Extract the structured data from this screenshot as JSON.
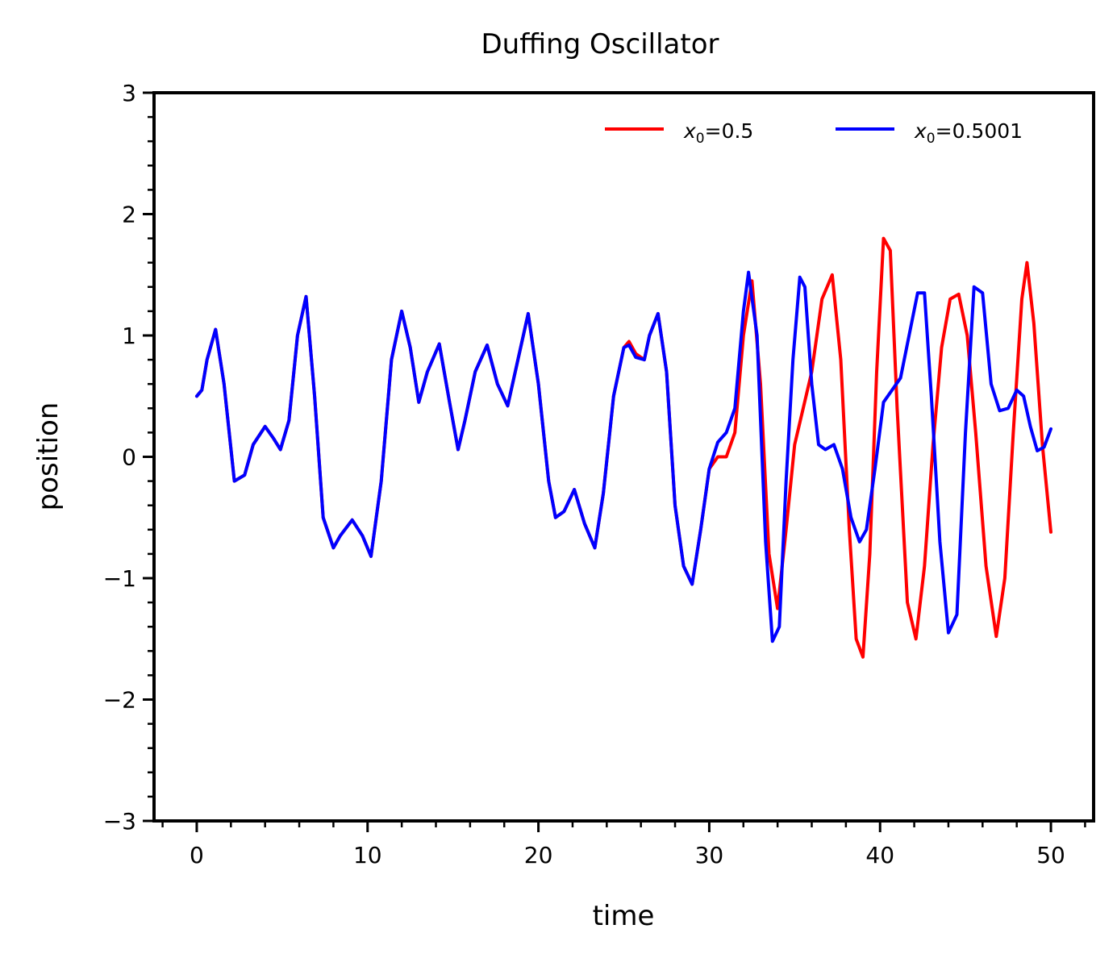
{
  "chart_data": {
    "type": "line",
    "title": "Duffing Oscillator",
    "xlabel": "time",
    "ylabel": "position",
    "xlim": [
      -2.5,
      52.5
    ],
    "ylim": [
      -3,
      3
    ],
    "x_ticks": [
      0,
      10,
      20,
      30,
      40,
      50
    ],
    "x_tick_labels": [
      "0",
      "10",
      "20",
      "30",
      "40",
      "50"
    ],
    "y_ticks": [
      -3,
      -2,
      -1,
      0,
      1,
      2,
      3
    ],
    "y_tick_labels": [
      "−3",
      "−2",
      "−1",
      "0",
      "1",
      "2",
      "3"
    ],
    "grid": false,
    "legend_position": "top-right",
    "series": [
      {
        "name": "x₀=0.5",
        "legend_var": "x",
        "legend_sub": "0",
        "legend_rest": "=0.5",
        "color": "#ff0000",
        "x": [
          0,
          0.3,
          0.6,
          1.1,
          1.6,
          2.2,
          2.8,
          3.3,
          4.0,
          4.5,
          4.9,
          5.4,
          5.9,
          6.4,
          6.9,
          7.4,
          8.0,
          8.4,
          9.1,
          9.7,
          10.2,
          10.8,
          11.4,
          12.0,
          12.5,
          13.0,
          13.5,
          14.2,
          14.8,
          15.3,
          15.7,
          16.3,
          17.0,
          17.6,
          18.2,
          18.8,
          19.4,
          20.0,
          20.6,
          21.0,
          21.5,
          22.1,
          22.7,
          23.3,
          23.8,
          24.4,
          25.0,
          25.3,
          25.7,
          26.2,
          26.5,
          27.0,
          27.5,
          28.0,
          28.5,
          29.0,
          29.5,
          30.0,
          30.5,
          31.0,
          31.5,
          32.0,
          32.5,
          33.0,
          33.5,
          34.0,
          34.5,
          35.0,
          35.5,
          36.0,
          36.6,
          37.2,
          37.7,
          38.2,
          38.6,
          39.0,
          39.4,
          39.8,
          40.2,
          40.6,
          41.0,
          41.6,
          42.1,
          42.6,
          43.1,
          43.6,
          44.1,
          44.6,
          45.1,
          45.6,
          46.2,
          46.8,
          47.3,
          47.8,
          48.3,
          48.6,
          49.0,
          49.5,
          50.0
        ],
        "y": [
          0.5,
          0.55,
          0.8,
          1.05,
          0.6,
          -0.2,
          -0.15,
          0.1,
          0.25,
          0.15,
          0.06,
          0.3,
          1.0,
          1.32,
          0.5,
          -0.5,
          -0.75,
          -0.65,
          -0.52,
          -0.65,
          -0.82,
          -0.2,
          0.8,
          1.2,
          0.9,
          0.45,
          0.7,
          0.93,
          0.45,
          0.06,
          0.3,
          0.7,
          0.92,
          0.6,
          0.42,
          0.8,
          1.18,
          0.6,
          -0.2,
          -0.5,
          -0.45,
          -0.27,
          -0.55,
          -0.75,
          -0.3,
          0.5,
          0.9,
          0.95,
          0.85,
          0.8,
          1.0,
          1.18,
          0.7,
          -0.4,
          -0.9,
          -1.05,
          -0.6,
          -0.1,
          0.0,
          0.0,
          0.2,
          1.0,
          1.45,
          0.6,
          -0.8,
          -1.25,
          -0.6,
          0.1,
          0.4,
          0.7,
          1.3,
          1.5,
          0.8,
          -0.6,
          -1.5,
          -1.65,
          -0.8,
          0.7,
          1.8,
          1.7,
          0.4,
          -1.2,
          -1.5,
          -0.9,
          0.1,
          0.9,
          1.3,
          1.34,
          1.0,
          0.2,
          -0.9,
          -1.48,
          -1.0,
          0.2,
          1.3,
          1.6,
          1.1,
          0.1,
          -0.62
        ]
      },
      {
        "name": "x₀=0.5001",
        "legend_var": "x",
        "legend_sub": "0",
        "legend_rest": "=0.5001",
        "color": "#0000ff",
        "x": [
          0,
          0.3,
          0.6,
          1.1,
          1.6,
          2.2,
          2.8,
          3.3,
          4.0,
          4.5,
          4.9,
          5.4,
          5.9,
          6.4,
          6.9,
          7.4,
          8.0,
          8.4,
          9.1,
          9.7,
          10.2,
          10.8,
          11.4,
          12.0,
          12.5,
          13.0,
          13.5,
          14.2,
          14.8,
          15.3,
          15.7,
          16.3,
          17.0,
          17.6,
          18.2,
          18.8,
          19.4,
          20.0,
          20.6,
          21.0,
          21.5,
          22.1,
          22.7,
          23.3,
          23.8,
          24.4,
          25.0,
          25.3,
          25.7,
          26.2,
          26.5,
          27.0,
          27.5,
          28.0,
          28.5,
          29.0,
          29.5,
          30.0,
          30.5,
          31.0,
          31.5,
          32.0,
          32.3,
          32.8,
          33.3,
          33.7,
          34.1,
          34.5,
          34.9,
          35.3,
          35.6,
          36.0,
          36.4,
          36.8,
          37.3,
          37.8,
          38.3,
          38.8,
          39.2,
          39.7,
          40.2,
          40.7,
          41.2,
          41.7,
          42.2,
          42.6,
          43.0,
          43.5,
          44.0,
          44.5,
          45.0,
          45.5,
          46.0,
          46.5,
          47.0,
          47.5,
          48.0,
          48.4,
          48.8,
          49.2,
          49.6,
          50.0
        ],
        "y": [
          0.5,
          0.55,
          0.8,
          1.05,
          0.6,
          -0.2,
          -0.15,
          0.1,
          0.25,
          0.15,
          0.06,
          0.3,
          1.0,
          1.32,
          0.5,
          -0.5,
          -0.75,
          -0.65,
          -0.52,
          -0.65,
          -0.82,
          -0.2,
          0.8,
          1.2,
          0.9,
          0.45,
          0.7,
          0.93,
          0.45,
          0.06,
          0.3,
          0.7,
          0.92,
          0.6,
          0.42,
          0.8,
          1.18,
          0.6,
          -0.2,
          -0.5,
          -0.45,
          -0.27,
          -0.55,
          -0.75,
          -0.3,
          0.5,
          0.9,
          0.92,
          0.82,
          0.8,
          1.0,
          1.18,
          0.7,
          -0.4,
          -0.9,
          -1.05,
          -0.6,
          -0.1,
          0.12,
          0.2,
          0.4,
          1.2,
          1.52,
          1.0,
          -0.7,
          -1.52,
          -1.4,
          -0.2,
          0.8,
          1.48,
          1.4,
          0.6,
          0.1,
          0.06,
          0.1,
          -0.1,
          -0.5,
          -0.7,
          -0.6,
          -0.1,
          0.45,
          0.55,
          0.65,
          1.0,
          1.35,
          1.35,
          0.5,
          -0.7,
          -1.45,
          -1.3,
          0.2,
          1.4,
          1.35,
          0.6,
          0.38,
          0.4,
          0.55,
          0.5,
          0.25,
          0.05,
          0.08,
          0.23
        ]
      }
    ]
  }
}
